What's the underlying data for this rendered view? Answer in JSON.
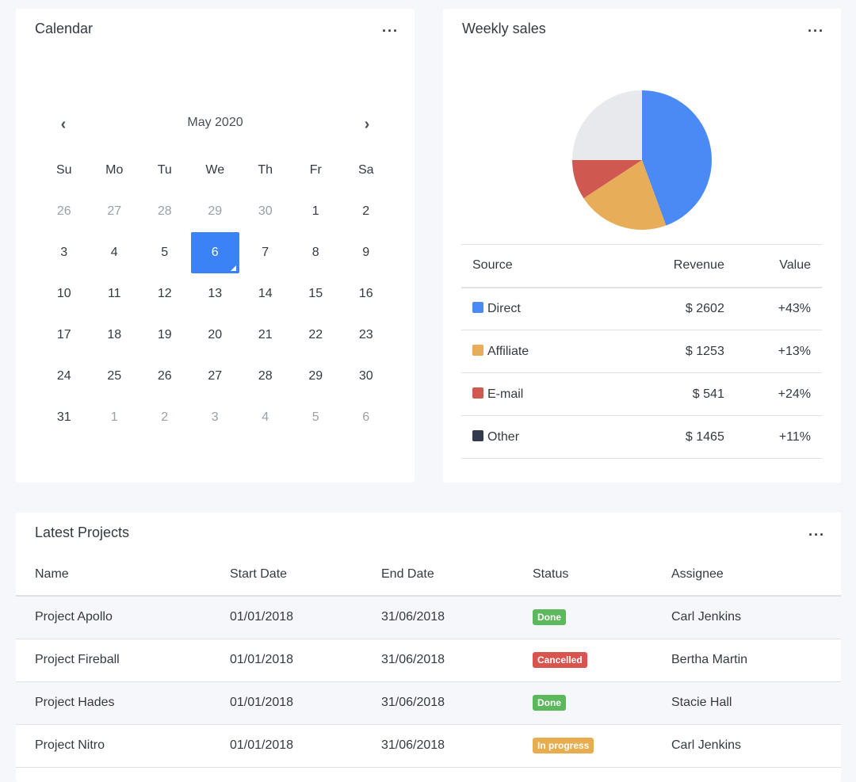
{
  "calendar": {
    "title": "Calendar",
    "month": "May 2020",
    "prev": "‹",
    "next": "›",
    "weekdays": [
      "Su",
      "Mo",
      "Tu",
      "We",
      "Th",
      "Fr",
      "Sa"
    ],
    "days": [
      [
        "26",
        "m"
      ],
      [
        "27",
        "m"
      ],
      [
        "28",
        "m"
      ],
      [
        "29",
        "m"
      ],
      [
        "30",
        "m"
      ],
      [
        "1",
        ""
      ],
      [
        "2",
        ""
      ],
      [
        "3",
        ""
      ],
      [
        "4",
        ""
      ],
      [
        "5",
        ""
      ],
      [
        "6",
        "s"
      ],
      [
        "7",
        ""
      ],
      [
        "8",
        ""
      ],
      [
        "9",
        ""
      ],
      [
        "10",
        ""
      ],
      [
        "11",
        ""
      ],
      [
        "12",
        ""
      ],
      [
        "13",
        ""
      ],
      [
        "14",
        ""
      ],
      [
        "15",
        ""
      ],
      [
        "16",
        ""
      ],
      [
        "17",
        ""
      ],
      [
        "18",
        ""
      ],
      [
        "19",
        ""
      ],
      [
        "20",
        ""
      ],
      [
        "21",
        ""
      ],
      [
        "22",
        ""
      ],
      [
        "23",
        ""
      ],
      [
        "24",
        ""
      ],
      [
        "25",
        ""
      ],
      [
        "26",
        ""
      ],
      [
        "27",
        ""
      ],
      [
        "28",
        ""
      ],
      [
        "29",
        ""
      ],
      [
        "30",
        ""
      ],
      [
        "31",
        ""
      ],
      [
        "1",
        "m"
      ],
      [
        "2",
        "m"
      ],
      [
        "3",
        "m"
      ],
      [
        "4",
        "m"
      ],
      [
        "5",
        "m"
      ],
      [
        "6",
        "m"
      ]
    ],
    "selected": "6"
  },
  "sales": {
    "title": "Weekly sales",
    "headers": [
      "Source",
      "Revenue",
      "Value"
    ],
    "rows": [
      {
        "source": "Direct",
        "revenue": "$ 2602",
        "value": "+43%",
        "color": "#4a8af4"
      },
      {
        "source": "Affiliate",
        "revenue": "$ 1253",
        "value": "+13%",
        "color": "#e8ad59"
      },
      {
        "source": "E-mail",
        "revenue": "$ 541",
        "value": "+24%",
        "color": "#cf5850"
      },
      {
        "source": "Other",
        "revenue": "$ 1465",
        "value": "+11%",
        "color": "#343a4c"
      }
    ]
  },
  "chart_data": {
    "type": "pie",
    "categories": [
      "Direct",
      "Affiliate",
      "E-mail",
      "Other"
    ],
    "values": [
      2602,
      1253,
      541,
      1465
    ],
    "colors": [
      "#4a8af4",
      "#e8ad59",
      "#cf5850",
      "#e8e9ec"
    ]
  },
  "projects": {
    "title": "Latest Projects",
    "headers": [
      "Name",
      "Start Date",
      "End Date",
      "Status",
      "Assignee"
    ],
    "rows": [
      {
        "name": "Project Apollo",
        "start": "01/01/2018",
        "end": "31/06/2018",
        "status": "Done",
        "color": "#5cb85c",
        "assignee": "Carl Jenkins"
      },
      {
        "name": "Project Fireball",
        "start": "01/01/2018",
        "end": "31/06/2018",
        "status": "Cancelled",
        "color": "#d9534f",
        "assignee": "Bertha Martin"
      },
      {
        "name": "Project Hades",
        "start": "01/01/2018",
        "end": "31/06/2018",
        "status": "Done",
        "color": "#5cb85c",
        "assignee": "Stacie Hall"
      },
      {
        "name": "Project Nitro",
        "start": "01/01/2018",
        "end": "31/06/2018",
        "status": "In progress",
        "color": "#e8ad4f",
        "assignee": "Carl Jenkins"
      }
    ]
  },
  "more": "···"
}
